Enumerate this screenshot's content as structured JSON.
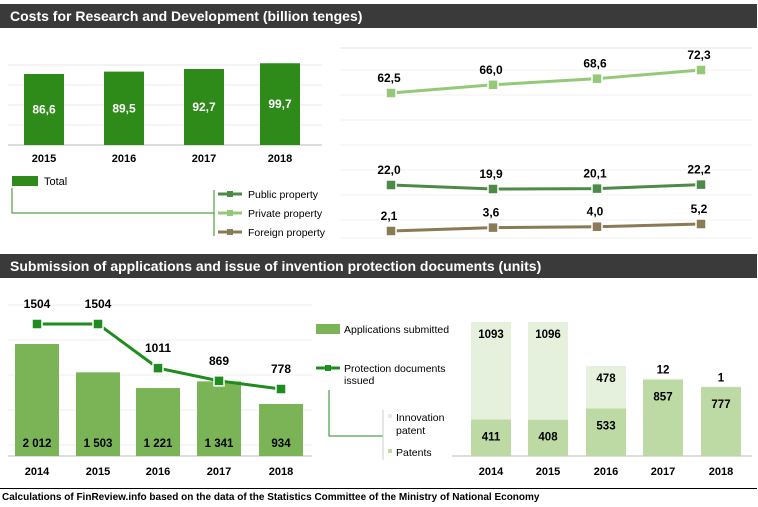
{
  "header1": "Costs  for Research and Development (billion tenges)",
  "header2": "Submission  of applications and issue  of invention protection documents (units)",
  "source": "Calculations of FinReview.info based on the data of the Statistics Committee of the Ministry of National Economy",
  "colors": {
    "dark_green": "#2e8b1a",
    "private": "#94c979",
    "public": "#4d8a47",
    "foreign": "#8b7a56",
    "apps": "#7ab457",
    "docs": "#1f8c1f",
    "patent": "#bddaa5",
    "innov": "#e6f1dd",
    "header": "#3a3a3a"
  },
  "chart_data": [
    {
      "id": "rd_total",
      "type": "bar",
      "categories": [
        "2015",
        "2016",
        "2017",
        "2018"
      ],
      "series": [
        {
          "name": "Total",
          "values": [
            86.6,
            89.5,
            92.7,
            99.7
          ],
          "labels": [
            "86,6",
            "89,5",
            "92,7",
            "99,7"
          ]
        }
      ],
      "legend": "bottom-left"
    },
    {
      "id": "rd_ownership",
      "type": "line",
      "categories": [
        "2015",
        "2016",
        "2017",
        "2018"
      ],
      "series": [
        {
          "name": "Private property",
          "values": [
            62.5,
            66.0,
            68.6,
            72.3
          ],
          "labels": [
            "62,5",
            "66,0",
            "68,6",
            "72,3"
          ]
        },
        {
          "name": "Public property",
          "values": [
            22.0,
            19.9,
            20.1,
            22.2
          ],
          "labels": [
            "22,0",
            "19,9",
            "20,1",
            "22,2"
          ]
        },
        {
          "name": "Foreign property",
          "values": [
            2.1,
            3.6,
            4.0,
            5.2
          ],
          "labels": [
            "2,1",
            "3,6",
            "4,0",
            "5,2"
          ]
        }
      ],
      "legend": "left"
    },
    {
      "id": "applications",
      "type": "bar",
      "categories": [
        "2014",
        "2015",
        "2016",
        "2017",
        "2018"
      ],
      "series": [
        {
          "name": "Applications submitted",
          "type": "bar",
          "values": [
            2012,
            1503,
            1221,
            1341,
            934
          ],
          "labels": [
            "2 012",
            "1 503",
            "1 221",
            "1 341",
            "934"
          ]
        },
        {
          "name": "Protection documents issued",
          "type": "line",
          "values": [
            1504,
            1504,
            1011,
            869,
            778
          ],
          "labels": [
            "1504",
            "1504",
            "1011",
            "869",
            "778"
          ]
        }
      ],
      "legend": "right"
    },
    {
      "id": "protection_docs",
      "type": "bar",
      "stacked": true,
      "categories": [
        "2014",
        "2015",
        "2016",
        "2017",
        "2018"
      ],
      "series": [
        {
          "name": "Patents",
          "values": [
            411,
            408,
            533,
            857,
            777
          ]
        },
        {
          "name": "Innovation patent",
          "values": [
            1093,
            1096,
            478,
            12,
            1
          ]
        }
      ],
      "legend": "left"
    }
  ]
}
